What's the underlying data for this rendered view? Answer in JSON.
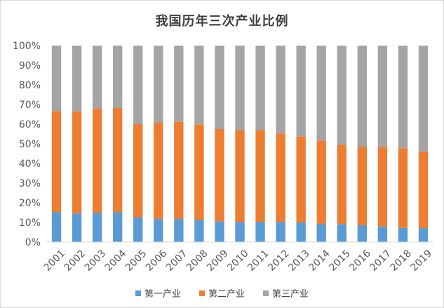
{
  "chart_data": {
    "type": "bar",
    "stacked": true,
    "normalized": true,
    "title": "我国历年三次产业比例",
    "categories": [
      "2001",
      "2002",
      "2003",
      "2004",
      "2005",
      "2006",
      "2007",
      "2008",
      "2009",
      "2010",
      "2011",
      "2012",
      "2013",
      "2014",
      "2015",
      "2016",
      "2017",
      "2018",
      "2019"
    ],
    "series": [
      {
        "name": "第一产业",
        "color": "#5b9bd5",
        "values": [
          15.2,
          14.6,
          15.0,
          15.2,
          12.5,
          11.8,
          11.8,
          11.3,
          10.5,
          10.2,
          10.2,
          10.3,
          10.0,
          9.3,
          9.2,
          8.6,
          7.9,
          7.2,
          7.1
        ]
      },
      {
        "name": "第二产业",
        "color": "#ed7d31",
        "values": [
          51.4,
          51.8,
          53.0,
          53.0,
          47.5,
          48.9,
          49.4,
          48.6,
          47.0,
          46.8,
          46.8,
          45.0,
          43.7,
          42.4,
          40.3,
          39.8,
          40.6,
          40.6,
          39.0
        ]
      },
      {
        "name": "第三产业",
        "color": "#a5a5a5",
        "values": [
          33.4,
          33.6,
          32.0,
          31.8,
          40.0,
          39.3,
          38.8,
          40.1,
          42.5,
          43.0,
          43.0,
          44.7,
          46.3,
          48.3,
          50.5,
          51.6,
          51.5,
          52.2,
          53.9
        ]
      }
    ],
    "ylim": [
      0,
      100
    ],
    "yticks": [
      "0%",
      "10%",
      "20%",
      "30%",
      "40%",
      "50%",
      "60%",
      "70%",
      "80%",
      "90%",
      "100%"
    ],
    "grid": false,
    "legend_position": "bottom"
  }
}
